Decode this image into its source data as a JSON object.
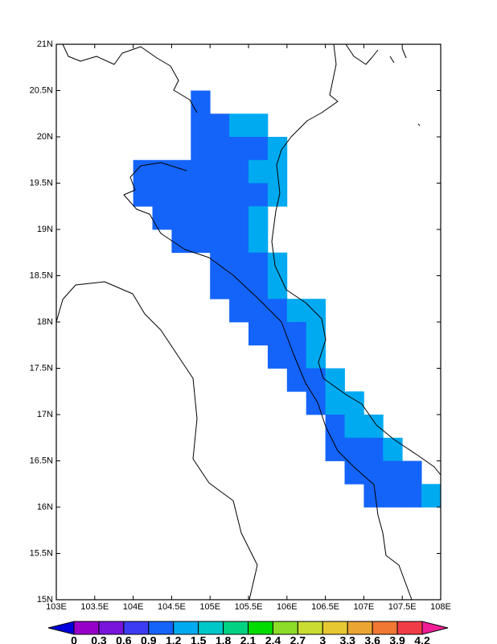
{
  "chart_data": {
    "type": "map",
    "xlim": [
      103,
      108
    ],
    "ylim": [
      15,
      21
    ],
    "xticks": [
      {
        "value": 103,
        "label": "103E"
      },
      {
        "value": 103.5,
        "label": "103.5E"
      },
      {
        "value": 104,
        "label": "104E"
      },
      {
        "value": 104.5,
        "label": "104.5E"
      },
      {
        "value": 105,
        "label": "105E"
      },
      {
        "value": 105.5,
        "label": "105.5E"
      },
      {
        "value": 106,
        "label": "106E"
      },
      {
        "value": 106.5,
        "label": "106.5E"
      },
      {
        "value": 107,
        "label": "107E"
      },
      {
        "value": 107.5,
        "label": "107.5E"
      },
      {
        "value": 108,
        "label": "108E"
      }
    ],
    "yticks": [
      {
        "value": 15,
        "label": "15N"
      },
      {
        "value": 15.5,
        "label": "15.5N"
      },
      {
        "value": 16,
        "label": "16N"
      },
      {
        "value": 16.5,
        "label": "16.5N"
      },
      {
        "value": 17,
        "label": "17N"
      },
      {
        "value": 17.5,
        "label": "17.5N"
      },
      {
        "value": 18,
        "label": "18N"
      },
      {
        "value": 18.5,
        "label": "18.5N"
      },
      {
        "value": 19,
        "label": "19N"
      },
      {
        "value": 19.5,
        "label": "19.5N"
      },
      {
        "value": 20,
        "label": "20N"
      },
      {
        "value": 20.5,
        "label": "20.5N"
      },
      {
        "value": 21,
        "label": "21N"
      }
    ],
    "colorbar": {
      "levels": [
        0,
        0.3,
        0.6,
        0.9,
        1.2,
        1.5,
        1.8,
        2.1,
        2.4,
        2.7,
        3,
        3.3,
        3.6,
        3.9,
        4.2
      ],
      "colors": [
        "#0000dc",
        "#9600c8",
        "#7814dc",
        "#3c3cf5",
        "#1464fa",
        "#00aaf0",
        "#00c8c8",
        "#00d282",
        "#00dc00",
        "#8cdc28",
        "#c8dc32",
        "#e6c832",
        "#eba532",
        "#f07832",
        "#f03c46",
        "#f01e96"
      ]
    },
    "cells": [
      [
        104.875,
        20.375,
        1.0
      ],
      [
        104.875,
        20.125,
        1.0
      ],
      [
        105.125,
        20.125,
        1.0
      ],
      [
        105.375,
        20.125,
        1.3
      ],
      [
        105.625,
        20.125,
        1.3
      ],
      [
        104.875,
        19.875,
        1.0
      ],
      [
        105.125,
        19.875,
        1.0
      ],
      [
        105.375,
        19.875,
        1.0
      ],
      [
        105.625,
        19.875,
        1.0
      ],
      [
        105.875,
        19.875,
        1.3
      ],
      [
        104.125,
        19.625,
        1.0
      ],
      [
        104.375,
        19.625,
        1.0
      ],
      [
        104.625,
        19.625,
        1.0
      ],
      [
        104.875,
        19.625,
        1.0
      ],
      [
        105.125,
        19.625,
        1.0
      ],
      [
        105.375,
        19.625,
        1.0
      ],
      [
        105.625,
        19.625,
        1.3
      ],
      [
        105.875,
        19.625,
        1.3
      ],
      [
        104.125,
        19.375,
        1.0
      ],
      [
        104.375,
        19.375,
        1.0
      ],
      [
        104.625,
        19.375,
        1.0
      ],
      [
        104.875,
        19.375,
        1.0
      ],
      [
        105.125,
        19.375,
        1.0
      ],
      [
        105.375,
        19.375,
        1.0
      ],
      [
        105.625,
        19.375,
        1.0
      ],
      [
        105.875,
        19.375,
        1.3
      ],
      [
        104.375,
        19.125,
        1.0
      ],
      [
        104.625,
        19.125,
        1.0
      ],
      [
        104.875,
        19.125,
        1.0
      ],
      [
        105.125,
        19.125,
        1.0
      ],
      [
        105.375,
        19.125,
        1.0
      ],
      [
        105.625,
        19.125,
        1.3
      ],
      [
        104.625,
        18.875,
        1.0
      ],
      [
        104.875,
        18.875,
        1.0
      ],
      [
        105.125,
        18.875,
        1.0
      ],
      [
        105.375,
        18.875,
        1.0
      ],
      [
        105.625,
        18.875,
        1.3
      ],
      [
        105.125,
        18.625,
        1.0
      ],
      [
        105.375,
        18.625,
        1.0
      ],
      [
        105.625,
        18.625,
        1.0
      ],
      [
        105.875,
        18.625,
        1.3
      ],
      [
        105.125,
        18.375,
        1.0
      ],
      [
        105.375,
        18.375,
        1.0
      ],
      [
        105.625,
        18.375,
        1.0
      ],
      [
        105.875,
        18.375,
        1.3
      ],
      [
        105.375,
        18.125,
        1.0
      ],
      [
        105.625,
        18.125,
        1.0
      ],
      [
        105.875,
        18.125,
        1.0
      ],
      [
        106.125,
        18.125,
        1.3
      ],
      [
        106.375,
        18.125,
        1.3
      ],
      [
        105.625,
        17.875,
        1.0
      ],
      [
        105.875,
        17.875,
        1.0
      ],
      [
        106.125,
        17.875,
        1.0
      ],
      [
        106.375,
        17.875,
        1.3
      ],
      [
        105.875,
        17.625,
        1.0
      ],
      [
        106.125,
        17.625,
        1.0
      ],
      [
        106.375,
        17.625,
        1.3
      ],
      [
        106.125,
        17.375,
        1.0
      ],
      [
        106.375,
        17.375,
        1.0
      ],
      [
        106.625,
        17.375,
        1.3
      ],
      [
        106.375,
        17.125,
        1.0
      ],
      [
        106.625,
        17.125,
        1.3
      ],
      [
        106.875,
        17.125,
        1.3
      ],
      [
        106.625,
        16.875,
        1.0
      ],
      [
        106.875,
        16.875,
        1.3
      ],
      [
        107.125,
        16.875,
        1.3
      ],
      [
        106.625,
        16.625,
        1.0
      ],
      [
        106.875,
        16.625,
        1.0
      ],
      [
        107.125,
        16.625,
        1.0
      ],
      [
        107.375,
        16.625,
        1.3
      ],
      [
        106.875,
        16.375,
        1.0
      ],
      [
        107.125,
        16.375,
        1.0
      ],
      [
        107.375,
        16.375,
        1.0
      ],
      [
        107.625,
        16.375,
        1.0
      ],
      [
        107.125,
        16.125,
        1.0
      ],
      [
        107.375,
        16.125,
        1.0
      ],
      [
        107.625,
        16.125,
        1.0
      ],
      [
        107.875,
        16.125,
        1.3
      ]
    ]
  }
}
